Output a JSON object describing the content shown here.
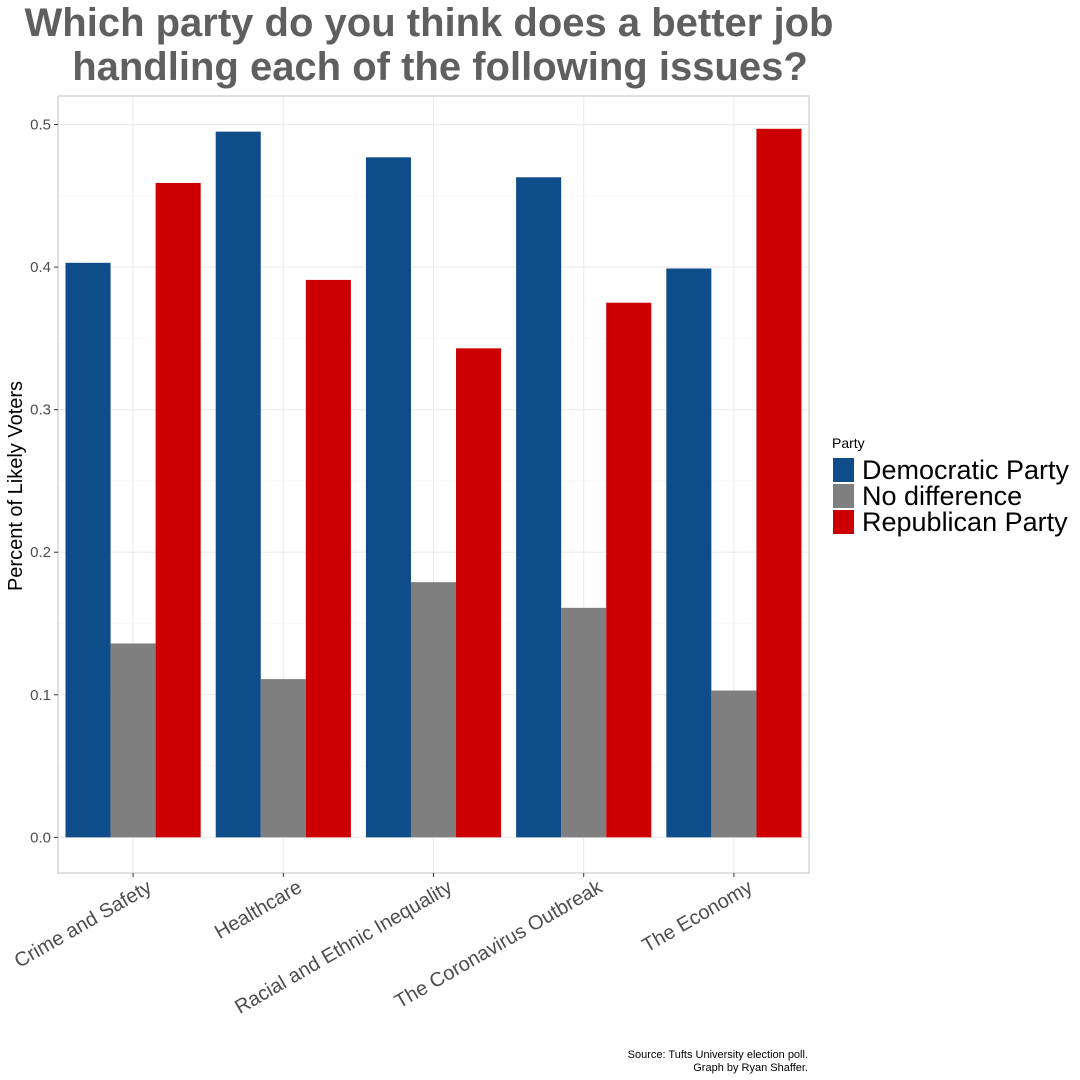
{
  "colors": {
    "democratic": "#0f4d8a",
    "no_difference": "#7f7f7f",
    "republican": "#cc0000",
    "title": "#5f5f5f"
  },
  "chart_data": {
    "type": "bar",
    "title_lines": [
      "Which party do you think does a better job",
      "handling each of the following issues?"
    ],
    "xlabel": "",
    "ylabel": "Percent of Likely Voters",
    "ylim": [
      -0.025,
      0.52
    ],
    "yticks": [
      0.0,
      0.1,
      0.2,
      0.3,
      0.4,
      0.5
    ],
    "ytick_labels": [
      "0.0",
      "0.1",
      "0.2",
      "0.3",
      "0.4",
      "0.5"
    ],
    "grid": true,
    "categories": [
      "Crime and Safety",
      "Healthcare",
      "Racial and Ethnic Inequality",
      "The Coronavirus Outbreak",
      "The Economy"
    ],
    "legend_title": "Party",
    "legend_position": "right",
    "series": [
      {
        "name": "Democratic Party",
        "color_key": "democratic",
        "values": [
          0.403,
          0.495,
          0.477,
          0.463,
          0.399
        ]
      },
      {
        "name": "No difference",
        "color_key": "no_difference",
        "values": [
          0.136,
          0.111,
          0.179,
          0.161,
          0.103
        ]
      },
      {
        "name": "Republican Party",
        "color_key": "republican",
        "values": [
          0.459,
          0.391,
          0.343,
          0.375,
          0.497
        ]
      }
    ],
    "caption_lines": [
      "Source: Tufts University election poll.",
      "Graph by Ryan Shaffer."
    ]
  }
}
